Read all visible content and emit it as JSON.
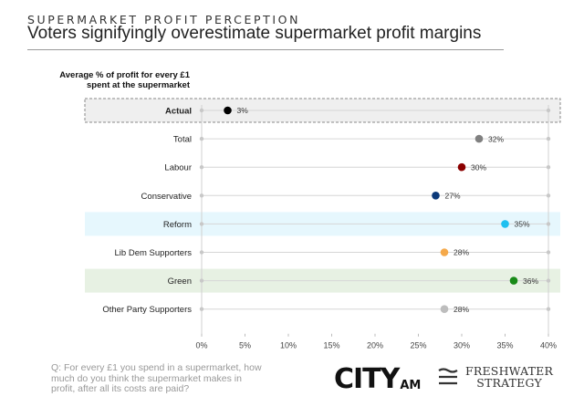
{
  "header": {
    "kicker": "SUPERMARKET PROFIT PERCEPTION",
    "title": "Voters signifyingly overestimate supermarket profit margins"
  },
  "chart_data": {
    "type": "scatter",
    "ytitle_line1": "Average % of profit for every £1",
    "ytitle_line2": "spent at the supermarket",
    "xlim": [
      0,
      40
    ],
    "xticks": [
      "0%",
      "5%",
      "10%",
      "15%",
      "20%",
      "25%",
      "30%",
      "35%",
      "40%"
    ],
    "categories": [
      "Actual",
      "Total",
      "Labour",
      "Conservative",
      "Reform",
      "Lib Dem Supporters",
      "Green",
      "Other Party Supporters"
    ],
    "values": [
      3,
      32,
      30,
      27,
      35,
      28,
      36,
      28
    ],
    "labels": [
      "3%",
      "32%",
      "30%",
      "27%",
      "35%",
      "28%",
      "36%",
      "28%"
    ],
    "colors": [
      "#000000",
      "#808080",
      "#8b0000",
      "#0c3a7a",
      "#1ec0f0",
      "#f5a94a",
      "#188a18",
      "#bdbdbd"
    ],
    "row_highlights": [
      "#efefef",
      "",
      "",
      "",
      "#e6f7fd",
      "",
      "#e7f1e3",
      ""
    ],
    "bold_categories": [
      "Actual"
    ],
    "grid": true
  },
  "footer": {
    "question_line1": "Q: For every £1 you spend in a supermarket, how",
    "question_line2": "much do you think the supermarket makes in",
    "question_line3": "profit, after all its costs are paid?",
    "logo_cityam_main": "CITY",
    "logo_cityam_sub": "AM",
    "logo_fw_line1": "FRESHWATER",
    "logo_fw_line2": "STRATEGY",
    "fw_mark_icon": "three-lines-icon"
  }
}
